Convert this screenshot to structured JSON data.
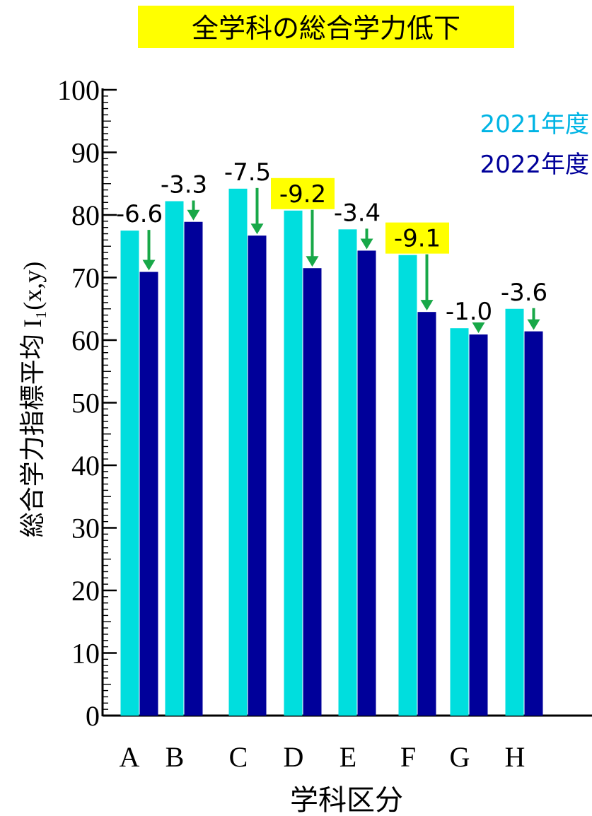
{
  "title": "全学科の総合学力低下",
  "xlabel": "学科区分",
  "ylabel": "総合学力指標平均 I₁(x,y)",
  "colors": {
    "series_2021": "#00dede",
    "series_2022": "#00009a",
    "legend_2021": "#00b4e4",
    "legend_2022": "#00009a",
    "arrow": "#18a848",
    "highlight": "#ffff00"
  },
  "chart_data": {
    "type": "bar",
    "title": "全学科の総合学力低下",
    "xlabel": "学科区分",
    "ylabel": "総合学力指標平均 I₁(x,y)",
    "categories": [
      "A",
      "B",
      "C",
      "D",
      "E",
      "F",
      "G",
      "H"
    ],
    "series": [
      {
        "name": "2021年度",
        "values": [
          77.5,
          82.2,
          84.2,
          80.7,
          77.7,
          73.6,
          61.9,
          65.0
        ]
      },
      {
        "name": "2022年度",
        "values": [
          70.9,
          78.9,
          76.7,
          71.5,
          74.3,
          64.5,
          60.9,
          61.4
        ]
      }
    ],
    "differences": [
      "-6.6",
      "-3.3",
      "-7.5",
      "-9.2",
      "-3.4",
      "-9.1",
      "-1.0",
      "-3.6"
    ],
    "highlighted_differences": [
      "D",
      "F"
    ],
    "ylim": [
      0,
      100
    ],
    "yticks": [
      "0",
      "10",
      "20",
      "30",
      "40",
      "50",
      "60",
      "70",
      "80",
      "90",
      "100"
    ],
    "legend_position": "top-right",
    "grid": false
  }
}
